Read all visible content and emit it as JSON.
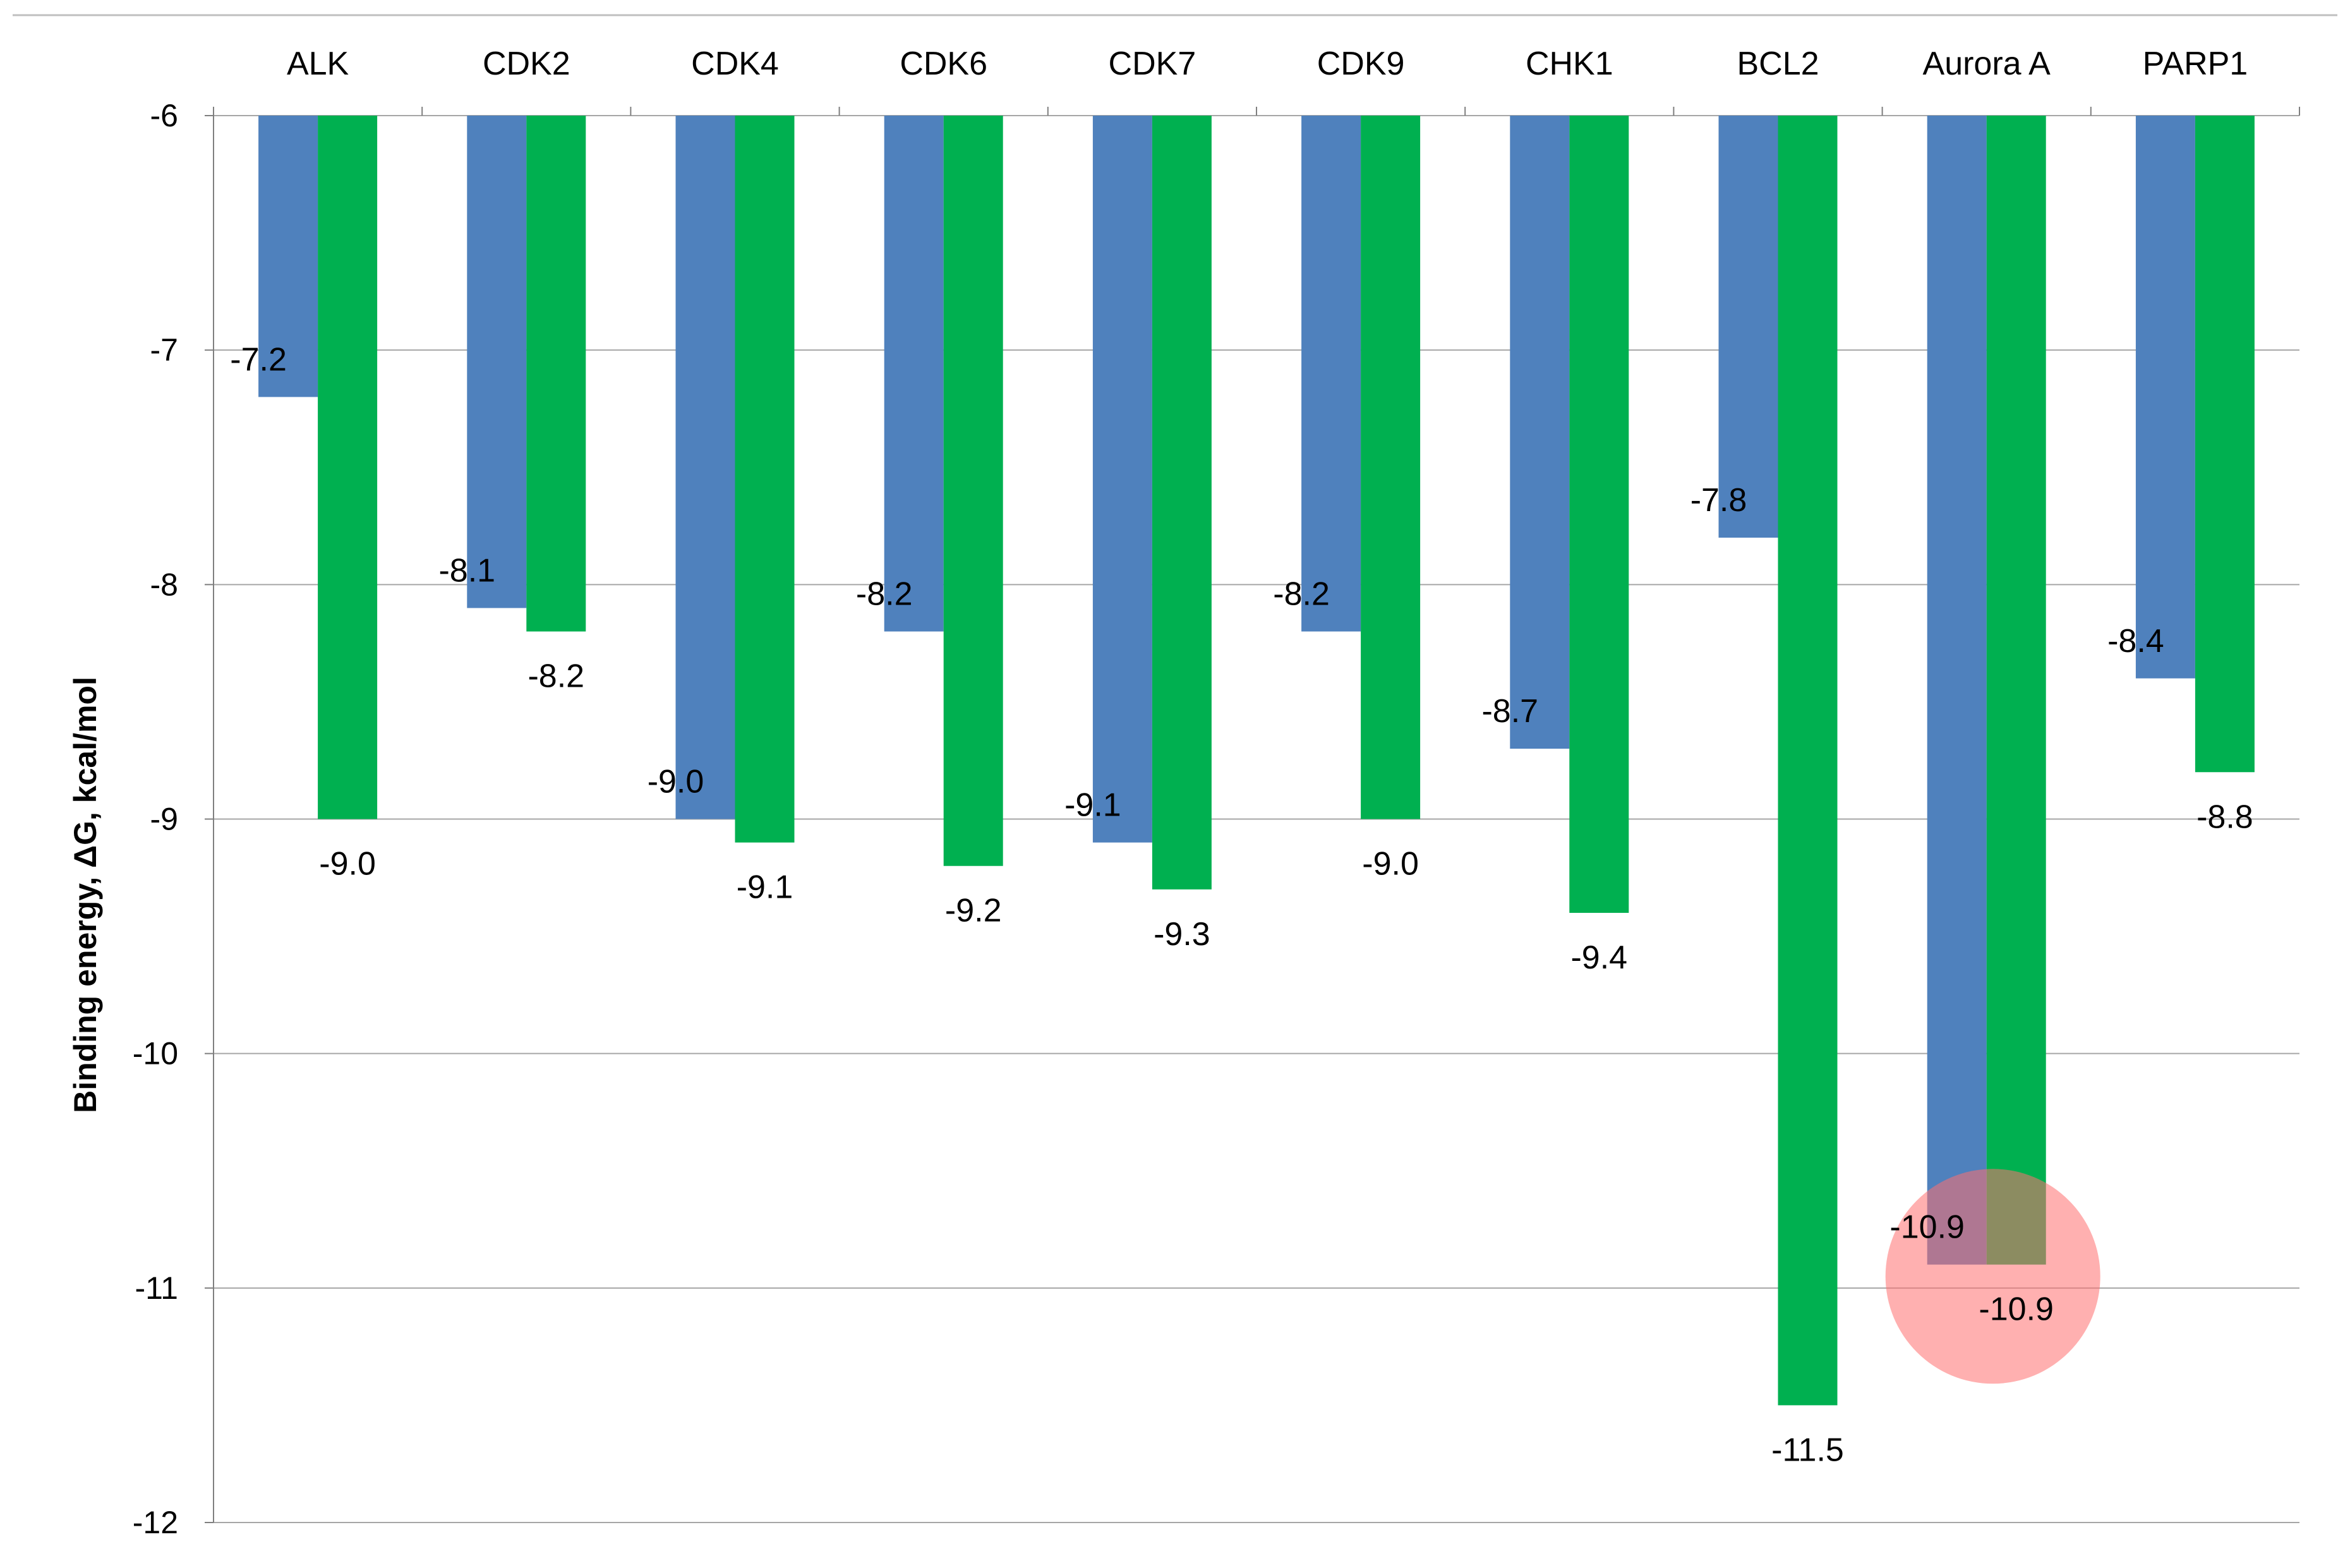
{
  "chart_data": {
    "type": "bar",
    "title": "",
    "xlabel": "",
    "ylabel": "Binding energy, ΔG, kcal/mol",
    "ylim": [
      -12,
      -6
    ],
    "yticks": [
      -6,
      -7,
      -8,
      -9,
      -10,
      -11,
      -12
    ],
    "grid": true,
    "category_axis_position": "top",
    "categories": [
      "ALK",
      "CDK2",
      "CDK4",
      "CDK6",
      "CDK7",
      "CDK9",
      "CHK1",
      "BCL2",
      "Aurora A",
      "PARP1"
    ],
    "series": [
      {
        "name": "Series 1",
        "color": "#4F81BD",
        "values": [
          -7.2,
          -8.1,
          -9.0,
          -8.2,
          -9.1,
          -8.2,
          -8.7,
          -7.8,
          -10.9,
          -8.4
        ],
        "labels": [
          "-7.2",
          "-8.1",
          "-9.0",
          "-8.2",
          "-9.1",
          "-8.2",
          "-8.7",
          "-7.8",
          "-10.9",
          "-8.4"
        ]
      },
      {
        "name": "Series 2",
        "color": "#00B050",
        "values": [
          -9.0,
          -8.2,
          -9.1,
          -9.2,
          -9.3,
          -9.0,
          -9.4,
          -11.5,
          -10.9,
          -8.8
        ],
        "labels": [
          "-9.0",
          "-8.2",
          "-9.1",
          "-9.2",
          "-9.3",
          "-9.0",
          "-9.4",
          "-11.5",
          "-10.9",
          "-8.8"
        ]
      }
    ],
    "highlight": {
      "category": "Aurora A",
      "center_value": -10.95,
      "color": "#FF6F6F"
    },
    "colors": {
      "background": "#FFFFFF",
      "gridline": "#A6A6A6",
      "axis": "#7F7F7F",
      "text": "#000000"
    }
  }
}
